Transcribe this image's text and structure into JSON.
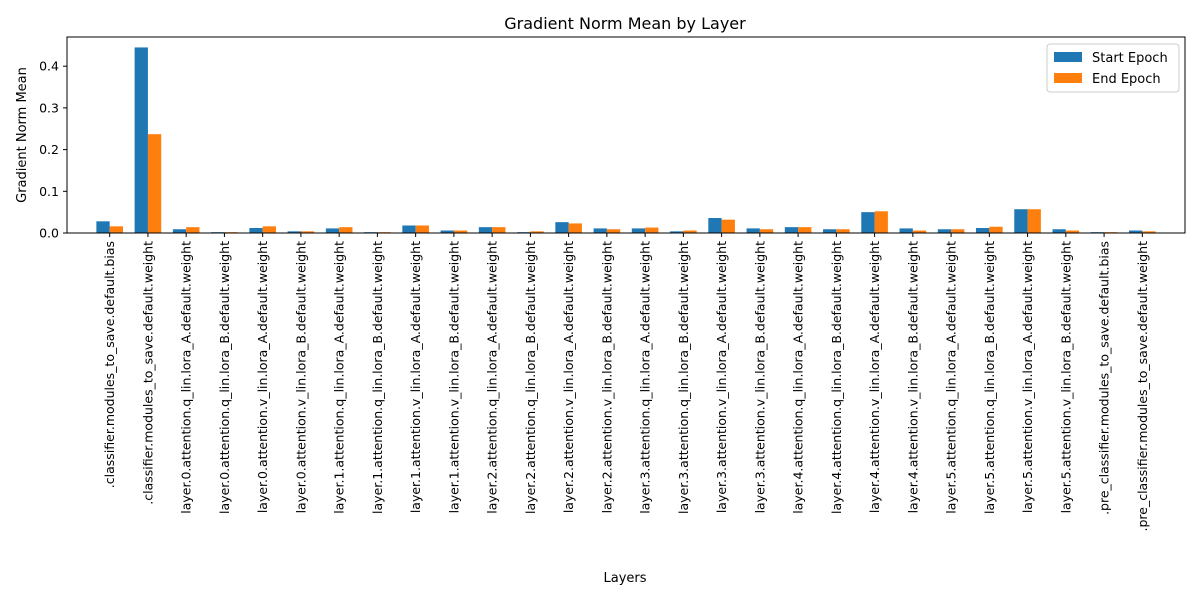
{
  "chart_data": {
    "type": "bar",
    "title": "Gradient Norm Mean by Layer",
    "xlabel": "Layers",
    "ylabel": "Gradient Norm Mean",
    "ylim": [
      0,
      0.47
    ],
    "yticks": [
      0.0,
      0.1,
      0.2,
      0.3,
      0.4
    ],
    "ytick_labels": [
      "0.0",
      "0.1",
      "0.2",
      "0.3",
      "0.4"
    ],
    "grid": false,
    "legend_position": "top-right",
    "categories": [
      ".classifier.modules_to_save.default.bias",
      ".classifier.modules_to_save.default.weight",
      "layer.0.attention.q_lin.lora_A.default.weight",
      "layer.0.attention.q_lin.lora_B.default.weight",
      "layer.0.attention.v_lin.lora_A.default.weight",
      "layer.0.attention.v_lin.lora_B.default.weight",
      "layer.1.attention.q_lin.lora_A.default.weight",
      "layer.1.attention.q_lin.lora_B.default.weight",
      "layer.1.attention.v_lin.lora_A.default.weight",
      "layer.1.attention.v_lin.lora_B.default.weight",
      "layer.2.attention.q_lin.lora_A.default.weight",
      "layer.2.attention.q_lin.lora_B.default.weight",
      "layer.2.attention.v_lin.lora_A.default.weight",
      "layer.2.attention.v_lin.lora_B.default.weight",
      "layer.3.attention.q_lin.lora_A.default.weight",
      "layer.3.attention.q_lin.lora_B.default.weight",
      "layer.3.attention.v_lin.lora_A.default.weight",
      "layer.3.attention.v_lin.lora_B.default.weight",
      "layer.4.attention.q_lin.lora_A.default.weight",
      "layer.4.attention.q_lin.lora_B.default.weight",
      "layer.4.attention.v_lin.lora_A.default.weight",
      "layer.4.attention.v_lin.lora_B.default.weight",
      "layer.5.attention.q_lin.lora_A.default.weight",
      "layer.5.attention.q_lin.lora_B.default.weight",
      "layer.5.attention.v_lin.lora_A.default.weight",
      "layer.5.attention.v_lin.lora_B.default.weight",
      ".pre_classifier.modules_to_save.default.bias",
      ".pre_classifier.modules_to_save.default.weight"
    ],
    "series": [
      {
        "name": "Start Epoch",
        "color": "#1f77b4",
        "values": [
          0.028,
          0.445,
          0.009,
          0.002,
          0.012,
          0.004,
          0.011,
          0.002,
          0.018,
          0.006,
          0.014,
          0.002,
          0.026,
          0.011,
          0.011,
          0.004,
          0.036,
          0.011,
          0.014,
          0.009,
          0.05,
          0.011,
          0.009,
          0.012,
          0.057,
          0.009,
          0.002,
          0.006
        ]
      },
      {
        "name": "End Epoch",
        "color": "#ff7f0e",
        "values": [
          0.016,
          0.237,
          0.014,
          0.002,
          0.016,
          0.004,
          0.014,
          0.002,
          0.018,
          0.006,
          0.014,
          0.004,
          0.023,
          0.009,
          0.013,
          0.006,
          0.032,
          0.009,
          0.014,
          0.009,
          0.052,
          0.006,
          0.009,
          0.015,
          0.057,
          0.006,
          0.002,
          0.004
        ]
      }
    ]
  }
}
